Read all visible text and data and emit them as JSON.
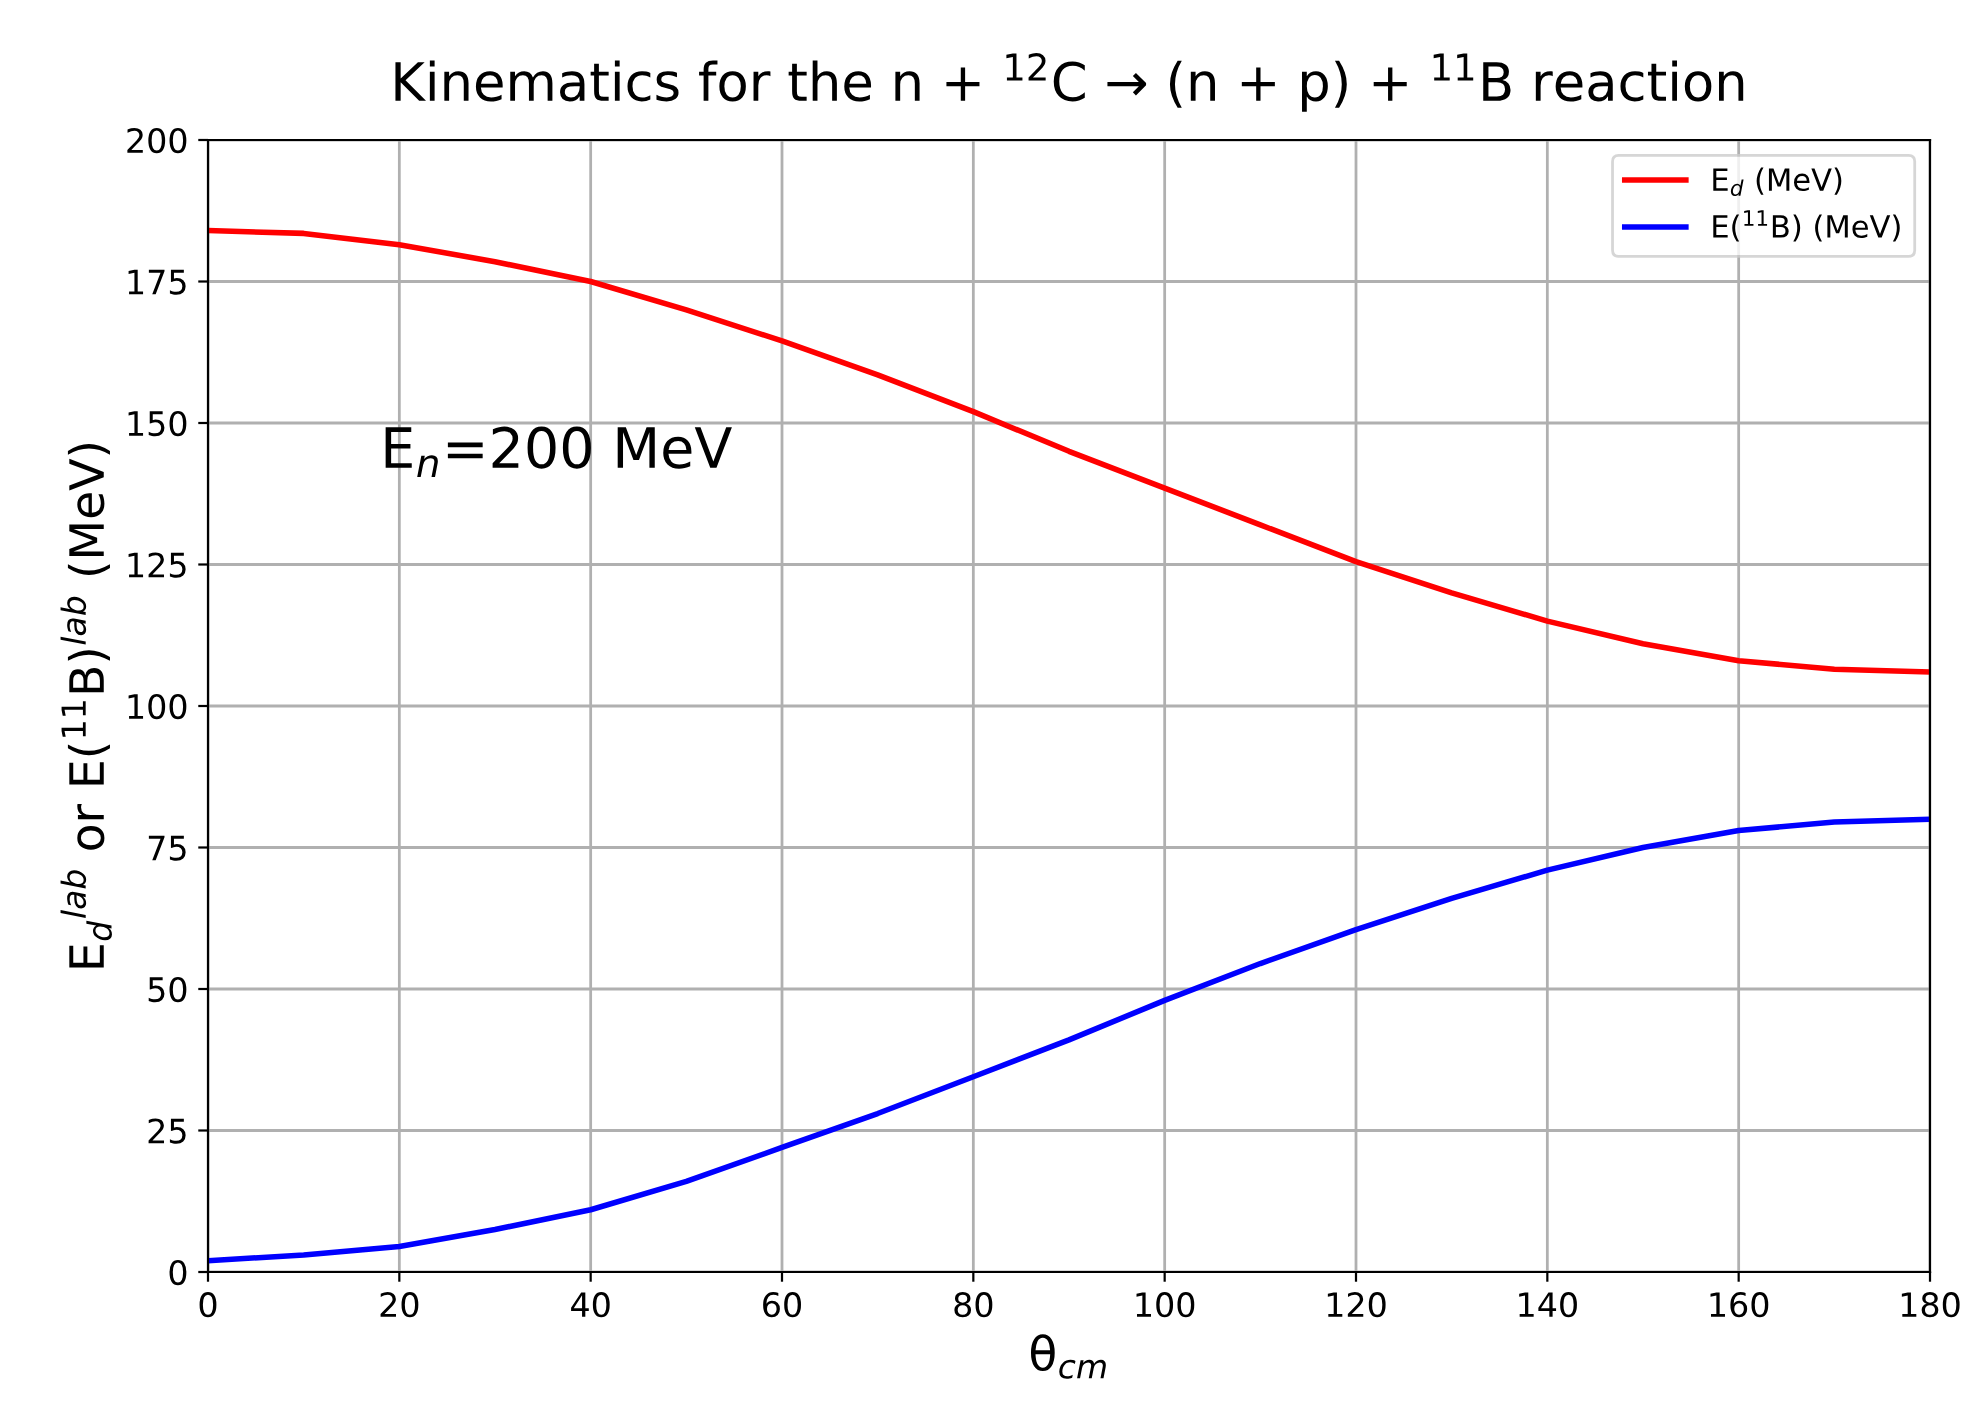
{
  "chart_data": {
    "type": "line",
    "title": "Kinematics for the n + $^{12}$C → (n + p) + $^{11}$B reaction",
    "xlabel": "θ$_{cm}$",
    "ylabel": "E$_{d}$$^{lab}$ or E($^{11}$B)$^{lab}$ (MeV)",
    "annotations": [
      "E$_{n}$=200 MeV"
    ],
    "x": [
      0,
      10,
      20,
      30,
      40,
      50,
      60,
      70,
      80,
      90,
      100,
      110,
      120,
      130,
      140,
      150,
      160,
      170,
      180
    ],
    "series": [
      {
        "name": "E$_{d}$ (MeV)",
        "color": "#ff0000",
        "values": [
          184,
          183.5,
          181.5,
          178.5,
          175,
          170,
          164.5,
          158.5,
          152,
          145,
          138.5,
          132,
          125.5,
          120,
          115,
          111,
          108,
          106.5,
          106
        ]
      },
      {
        "name": "E($^{11}$B) (MeV)",
        "color": "#0000ff",
        "values": [
          2,
          3,
          4.5,
          7.5,
          11,
          16,
          22,
          28,
          34.5,
          41,
          48,
          54.5,
          60.5,
          66,
          71,
          75,
          78,
          79.5,
          80
        ]
      }
    ],
    "xlim": [
      0,
      180
    ],
    "xticks": [
      0,
      20,
      40,
      60,
      80,
      100,
      120,
      140,
      160,
      180
    ],
    "ylim": [
      0,
      200
    ],
    "yticks": [
      0,
      25,
      50,
      75,
      100,
      125,
      150,
      175,
      200
    ],
    "grid": true,
    "legend": "top right",
    "marker": "none",
    "line_style": "solid"
  }
}
